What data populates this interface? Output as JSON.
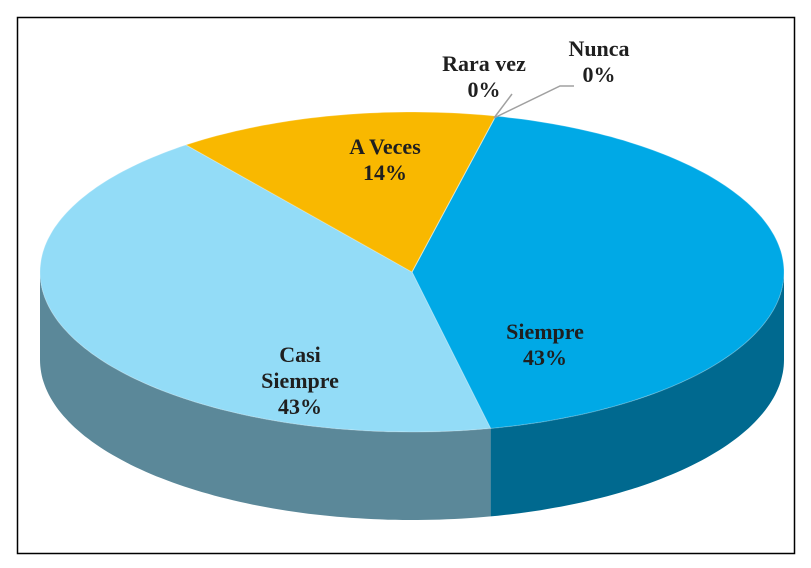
{
  "chart_data": {
    "type": "pie3d",
    "categories": [
      "Siempre",
      "Casi Siempre",
      "A Veces",
      "Rara vez",
      "Nunca"
    ],
    "values": [
      43,
      43,
      14,
      0,
      0
    ],
    "value_labels": [
      "43%",
      "43%",
      "14%",
      "0%",
      "0%"
    ],
    "colors": [
      "#00a9e6",
      "#93dcf7",
      "#f9b800",
      "#7f7f7f",
      "#a5a5a5"
    ]
  }
}
